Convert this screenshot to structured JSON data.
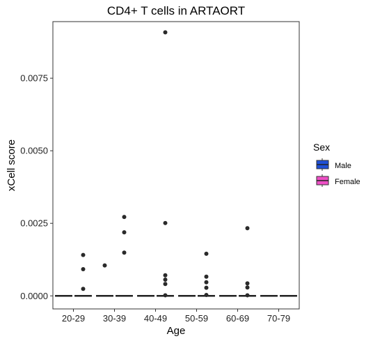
{
  "chart_data": {
    "type": "boxplot",
    "title": "CD4+ T cells in ARTAORT",
    "xlabel": "Age",
    "ylabel": "xCell score",
    "categories": [
      "20-29",
      "30-39",
      "40-49",
      "50-59",
      "60-69",
      "70-79"
    ],
    "ylim": [
      -0.00045,
      0.00945
    ],
    "yticks": [
      0.0,
      0.0025,
      0.005,
      0.0075
    ],
    "ytick_labels": [
      "0.0000",
      "0.0025",
      "0.0050",
      "0.0075"
    ],
    "grid": false,
    "legend": {
      "title": "Sex",
      "position": "right",
      "entries": [
        {
          "name": "Male",
          "color": "#1f4fd6"
        },
        {
          "name": "Female",
          "color": "#ee4fc6"
        }
      ]
    },
    "series": [
      {
        "name": "Male",
        "color": "#1f4fd6",
        "boxes": [
          {
            "category": "20-29",
            "median": 0,
            "q1": 0,
            "q3": 0,
            "whisker_low": 0,
            "whisker_high": 0,
            "outliers": []
          },
          {
            "category": "30-39",
            "median": 0,
            "q1": 0,
            "q3": 0,
            "whisker_low": 0,
            "whisker_high": 0,
            "outliers": [
              0.00105
            ]
          },
          {
            "category": "40-49",
            "median": 0,
            "q1": 0,
            "q3": 0,
            "whisker_low": 0,
            "whisker_high": 0,
            "outliers": []
          },
          {
            "category": "50-59",
            "median": 0,
            "q1": 0,
            "q3": 0,
            "whisker_low": 0,
            "whisker_high": 0,
            "outliers": []
          },
          {
            "category": "60-69",
            "median": 0,
            "q1": 0,
            "q3": 0,
            "whisker_low": 0,
            "whisker_high": 0,
            "outliers": []
          },
          {
            "category": "70-79",
            "median": 0,
            "q1": 0,
            "q3": 0,
            "whisker_low": 0,
            "whisker_high": 0,
            "outliers": []
          }
        ]
      },
      {
        "name": "Female",
        "color": "#ee4fc6",
        "boxes": [
          {
            "category": "20-29",
            "median": 0,
            "q1": 0,
            "q3": 0,
            "whisker_low": 0,
            "whisker_high": 0,
            "outliers": [
              0.00141,
              0.00092,
              0.00024
            ]
          },
          {
            "category": "30-39",
            "median": 0,
            "q1": 0,
            "q3": 0,
            "whisker_low": 0,
            "whisker_high": 0,
            "outliers": [
              0.00272,
              0.00219,
              0.00149
            ]
          },
          {
            "category": "40-49",
            "median": 0,
            "q1": 0,
            "q3": 0,
            "whisker_low": 0,
            "whisker_high": 0,
            "outliers": [
              0.00908,
              0.00251,
              0.00071,
              0.00056,
              0.00041,
              2e-05
            ]
          },
          {
            "category": "50-59",
            "median": 0,
            "q1": 0,
            "q3": 0,
            "whisker_low": 0,
            "whisker_high": 0,
            "outliers": [
              0.00145,
              0.00066,
              0.00047,
              0.00028,
              3e-05
            ]
          },
          {
            "category": "60-69",
            "median": 0,
            "q1": 0,
            "q3": 0,
            "whisker_low": 0,
            "whisker_high": 0,
            "outliers": [
              0.00233,
              0.00043,
              0.00029,
              2e-05
            ]
          },
          {
            "category": "70-79",
            "median": 0,
            "q1": 0,
            "q3": 0,
            "whisker_low": 0,
            "whisker_high": 0,
            "outliers": []
          }
        ]
      }
    ]
  }
}
